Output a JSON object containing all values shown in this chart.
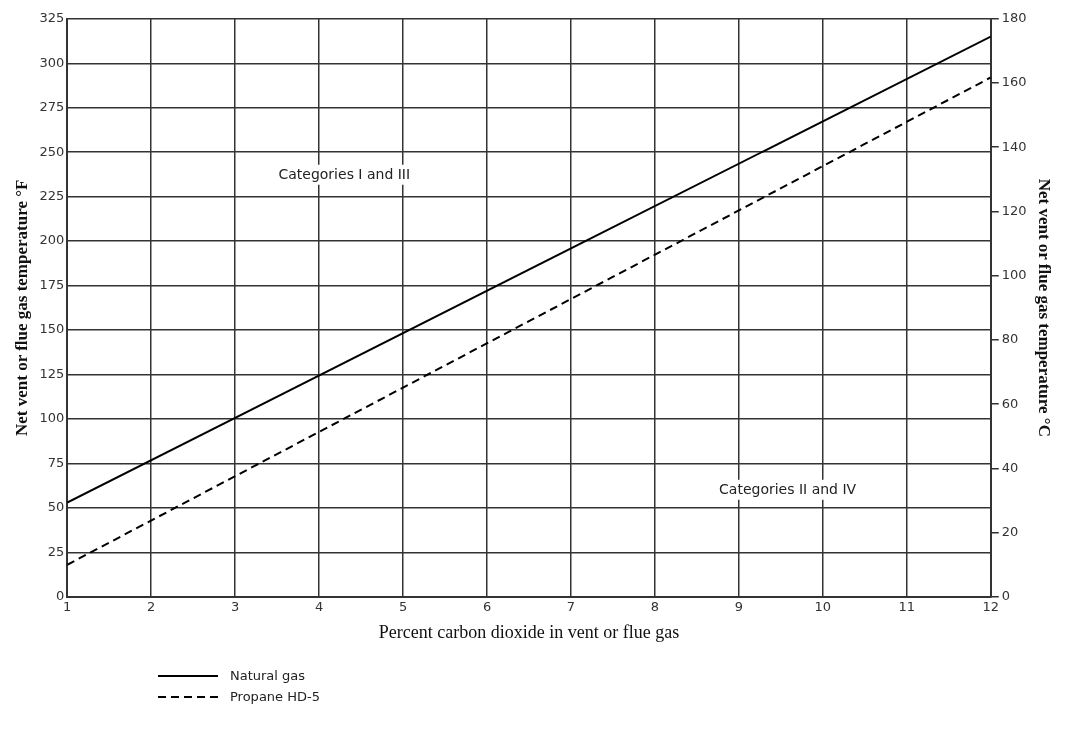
{
  "chart_data": {
    "type": "line",
    "xlabel": "Percent carbon dioxide in vent or flue gas",
    "ylabel": "Net vent or flue gas temperature °F",
    "y2label": "Net vent or flue gas temperature °C",
    "x": [
      1,
      12
    ],
    "series": [
      {
        "name": "Natural gas",
        "color": "#000000",
        "values": [
          53,
          315
        ],
        "line_style": "solid"
      },
      {
        "name": "Propane HD-5",
        "color": "#000000",
        "values": [
          18,
          292
        ],
        "line_style": "dashed"
      }
    ],
    "xlim": [
      1,
      12
    ],
    "xticks": [
      1,
      2,
      3,
      4,
      5,
      6,
      7,
      8,
      9,
      10,
      11,
      12
    ],
    "ylim": [
      0,
      325
    ],
    "yticks": [
      0,
      25,
      50,
      75,
      100,
      125,
      150,
      175,
      200,
      225,
      250,
      275,
      300,
      325
    ],
    "y2lim": [
      0,
      180
    ],
    "y2ticks": [
      0,
      20,
      40,
      60,
      80,
      100,
      120,
      140,
      160,
      180
    ],
    "grid": true,
    "legend": "bottom left",
    "marker": "none",
    "annotations": [
      "Categories I and III",
      "Categories II and IV"
    ]
  }
}
